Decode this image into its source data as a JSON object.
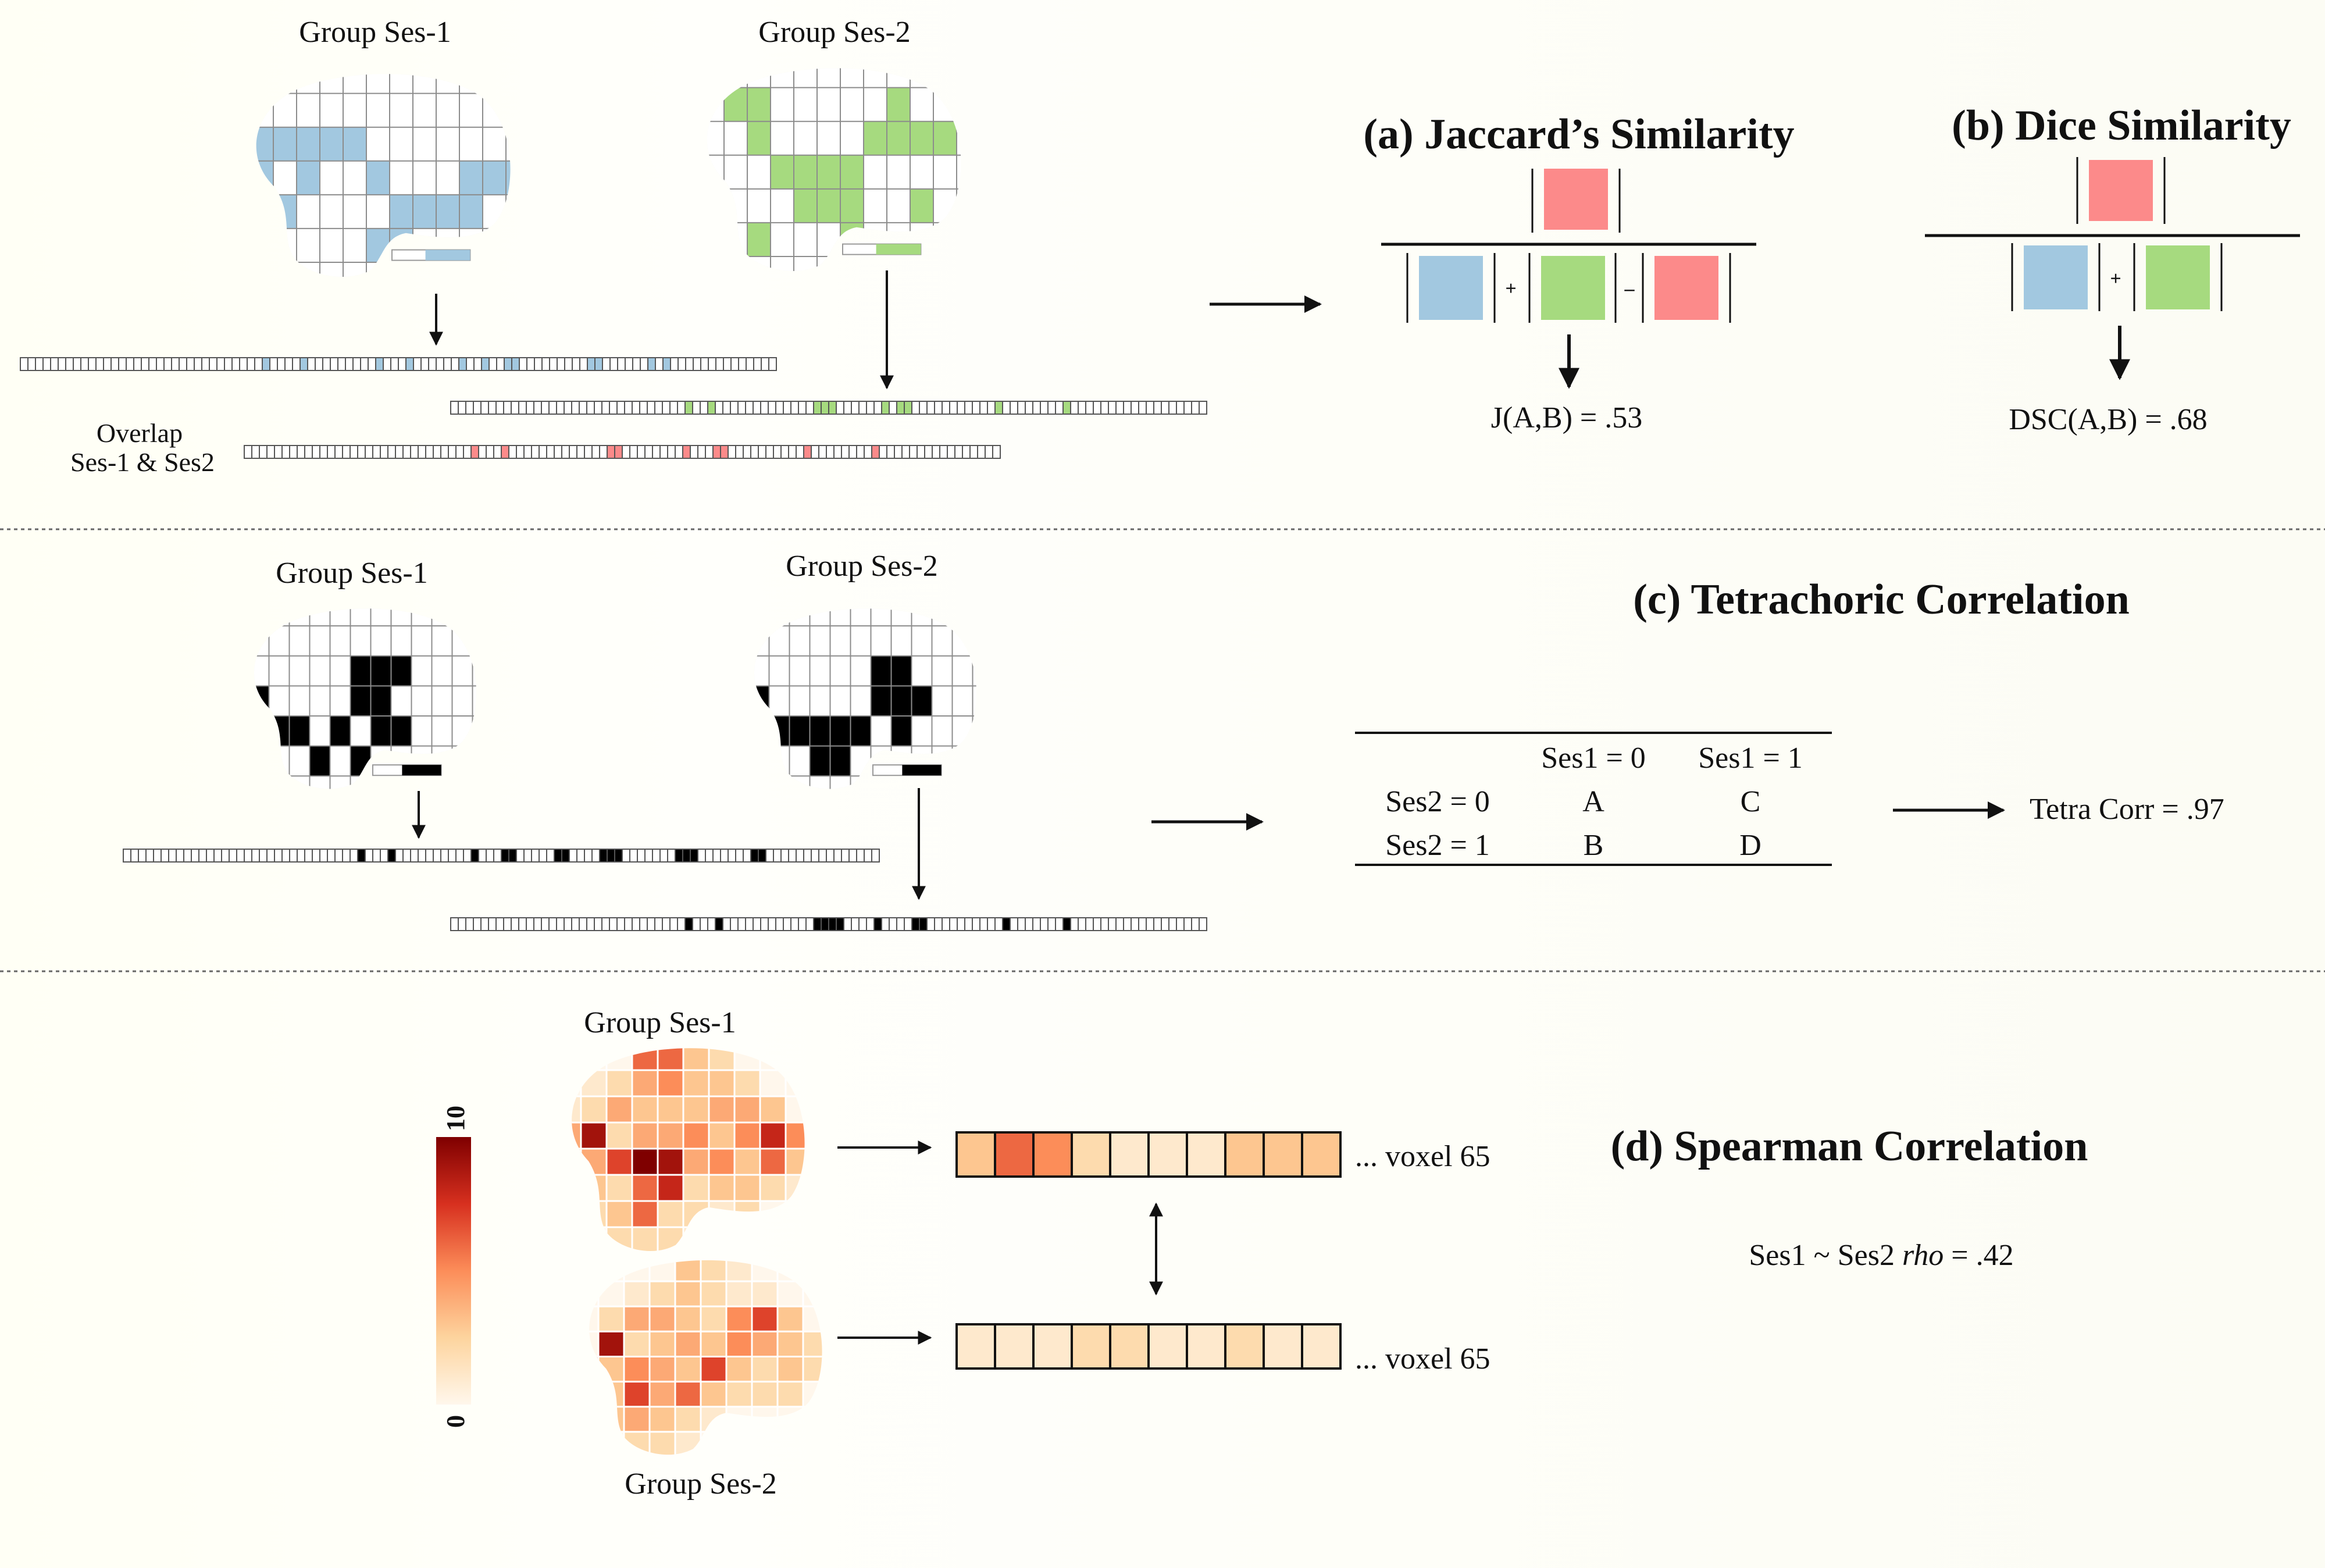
{
  "colors": {
    "blue": "#a2c8e0",
    "green": "#a6da7f",
    "red": "#fc8a8a",
    "black": "#000000",
    "grid": "#8c8c8c",
    "heat_low": "#fff3e6",
    "heat_high": "#8c0000"
  },
  "panel_top": {
    "ses1_label": "Group Ses-1",
    "ses2_label": "Group Ses-2",
    "overlap_label_1": "Overlap",
    "overlap_label_2": "Ses-1 & Ses2",
    "ses1_active_cells": [
      [
        1,
        1
      ],
      [
        1,
        2
      ],
      [
        1,
        3
      ],
      [
        1,
        4
      ],
      [
        1,
        5
      ],
      [
        2,
        1
      ],
      [
        2,
        3
      ],
      [
        3,
        2
      ],
      [
        2,
        6
      ],
      [
        4,
        6
      ],
      [
        3,
        7
      ],
      [
        3,
        8
      ],
      [
        4,
        7
      ],
      [
        3,
        9
      ],
      [
        2,
        10
      ],
      [
        3,
        10
      ],
      [
        2,
        11
      ],
      [
        2,
        12
      ]
    ],
    "ses2_active_cells": [
      [
        0,
        2
      ],
      [
        0,
        3
      ],
      [
        1,
        3
      ],
      [
        4,
        3
      ],
      [
        2,
        4
      ],
      [
        2,
        5
      ],
      [
        3,
        5
      ],
      [
        2,
        6
      ],
      [
        3,
        6
      ],
      [
        2,
        7
      ],
      [
        3,
        7
      ],
      [
        4,
        7
      ],
      [
        1,
        8
      ],
      [
        0,
        9
      ],
      [
        1,
        9
      ],
      [
        1,
        10
      ],
      [
        3,
        10
      ],
      [
        1,
        11
      ]
    ],
    "ses1_vector_on": [
      32,
      37,
      47,
      51,
      58,
      61,
      64,
      65,
      75,
      76,
      83,
      85
    ],
    "ses2_vector_on": [
      31,
      34,
      48,
      49,
      50,
      57,
      59,
      60,
      72,
      81
    ],
    "overlap_vector_on": [
      30,
      34,
      48,
      49,
      58,
      62,
      63,
      74,
      83
    ]
  },
  "jaccard": {
    "title": "(a) Jaccard’s Similarity",
    "plus": "+",
    "minus": "–",
    "result": "J(A,B) = .53"
  },
  "dice": {
    "title": "(b) Dice Similarity",
    "plus": "+",
    "result": "DSC(A,B) = .68"
  },
  "panel_mid": {
    "ses1_label": "Group Ses-1",
    "ses2_label": "Group Ses-2",
    "ses1_active_cells": [
      [
        1,
        6
      ],
      [
        2,
        1
      ],
      [
        2,
        6
      ],
      [
        3,
        1
      ],
      [
        3,
        2
      ],
      [
        1,
        7
      ],
      [
        3,
        7
      ],
      [
        3,
        8
      ],
      [
        3,
        3
      ],
      [
        4,
        4
      ],
      [
        3,
        5
      ],
      [
        4,
        6
      ],
      [
        2,
        7
      ],
      [
        1,
        8
      ]
    ],
    "ses2_active_cells": [
      [
        1,
        7
      ],
      [
        2,
        1
      ],
      [
        2,
        7
      ],
      [
        3,
        2
      ],
      [
        3,
        3
      ],
      [
        3,
        6
      ],
      [
        4,
        4
      ],
      [
        2,
        8
      ],
      [
        3,
        4
      ],
      [
        3,
        5
      ],
      [
        4,
        5
      ],
      [
        2,
        9
      ],
      [
        1,
        8
      ],
      [
        3,
        8
      ]
    ],
    "ses1_vector_on": [
      31,
      35,
      46,
      50,
      51,
      57,
      58,
      63,
      64,
      65,
      73,
      74,
      75,
      83,
      84
    ],
    "ses2_vector_on": [
      31,
      35,
      48,
      49,
      50,
      51,
      56,
      61,
      62,
      73,
      81
    ]
  },
  "tetrachoric": {
    "title": "(c) Tetrachoric Correlation",
    "col_headers": [
      "Ses1 = 0",
      "Ses1 = 1"
    ],
    "rows": [
      {
        "label": "Ses2 = 0",
        "cells": [
          "A",
          "C"
        ]
      },
      {
        "label": "Ses2 = 1",
        "cells": [
          "B",
          "D"
        ]
      }
    ],
    "result": "Tetra Corr = .97"
  },
  "panel_bottom": {
    "ses1_label": "Group Ses-1",
    "ses2_label": "Group Ses-2",
    "colorbar_max": "10",
    "colorbar_min": "0",
    "ses1_voxels": [
      3,
      6,
      5,
      2,
      1,
      1,
      1,
      3,
      3,
      3
    ],
    "ses2_voxels": [
      1,
      1,
      1,
      2,
      2,
      1,
      1,
      2,
      1,
      1
    ],
    "voxel_suffix": "... voxel 65",
    "ses1_map": [
      [
        0,
        0,
        0,
        6,
        6,
        3,
        2,
        0,
        0,
        0
      ],
      [
        0,
        1,
        2,
        4,
        5,
        3,
        3,
        2,
        0,
        0
      ],
      [
        1,
        2,
        4,
        3,
        3,
        3,
        4,
        4,
        3,
        0
      ],
      [
        4,
        9,
        2,
        4,
        4,
        5,
        3,
        5,
        8,
        5
      ],
      [
        5,
        4,
        7,
        10,
        9,
        4,
        5,
        3,
        6,
        3
      ],
      [
        2,
        3,
        2,
        6,
        8,
        2,
        3,
        3,
        2,
        1
      ],
      [
        0,
        2,
        3,
        6,
        2,
        2,
        1,
        2,
        0,
        0
      ],
      [
        0,
        0,
        2,
        2,
        2,
        1,
        0,
        0,
        0,
        0
      ]
    ],
    "ses2_map": [
      [
        0,
        0,
        0,
        0,
        3,
        2,
        1,
        0,
        0,
        0
      ],
      [
        0,
        0,
        1,
        2,
        3,
        2,
        1,
        1,
        0,
        0
      ],
      [
        0,
        2,
        4,
        4,
        3,
        2,
        5,
        7,
        3,
        0
      ],
      [
        0,
        9,
        2,
        3,
        4,
        3,
        5,
        4,
        3,
        2
      ],
      [
        8,
        3,
        5,
        4,
        3,
        7,
        3,
        2,
        3,
        2
      ],
      [
        2,
        3,
        7,
        4,
        6,
        3,
        2,
        2,
        2,
        0
      ],
      [
        0,
        3,
        4,
        3,
        2,
        1,
        0,
        0,
        0,
        0
      ],
      [
        0,
        0,
        2,
        2,
        1,
        0,
        0,
        0,
        0,
        0
      ]
    ]
  },
  "spearman": {
    "title": "(d) Spearman Correlation",
    "result_prefix": "Ses1 ~ Ses2 ",
    "result_stat": "rho",
    "result_suffix": " = .42"
  }
}
